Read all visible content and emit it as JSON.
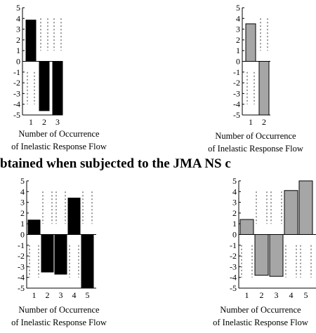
{
  "banner_text": "btained when subjected to the JMA NS c",
  "colors": {
    "dark": "#000000",
    "light": "#a6a6a6",
    "stroke": "#000000"
  },
  "chart_data": [
    {
      "type": "bar",
      "position": "top-left",
      "categories": [
        "1",
        "2",
        "3"
      ],
      "values": [
        3.85,
        -4.6,
        -5
      ],
      "color": "dark",
      "xlabel": [
        "Number of Occurrence",
        "of Inelastic Response Flow"
      ],
      "ylim": [
        -5,
        5
      ],
      "yticks": [
        5,
        4,
        3,
        2,
        1,
        0,
        -1,
        -2,
        -3,
        -4,
        -5
      ]
    },
    {
      "type": "bar",
      "position": "top-right",
      "categories": [
        "1",
        "2"
      ],
      "values": [
        3.5,
        -5
      ],
      "color": "light",
      "xlabel": [
        "Number of Occurrence",
        "of Inelastic Response Flow"
      ],
      "ylim": [
        -5,
        5
      ],
      "yticks": [
        5,
        4,
        3,
        2,
        1,
        0,
        -1,
        -2,
        -3,
        -4,
        -5
      ]
    },
    {
      "type": "bar",
      "position": "bottom-left",
      "categories": [
        "1",
        "2",
        "3",
        "4",
        "5"
      ],
      "values": [
        1.35,
        -3.5,
        -3.7,
        3.4,
        -5
      ],
      "color": "dark",
      "xlabel": [
        "Number of Occurrence",
        "of Inelastic Response Flow"
      ],
      "ylim": [
        -5,
        5
      ],
      "yticks": [
        5,
        4,
        3,
        2,
        1,
        0,
        -1,
        -2,
        -3,
        -4,
        -5
      ]
    },
    {
      "type": "bar",
      "position": "bottom-right",
      "categories": [
        "1",
        "2",
        "3",
        "4",
        "5"
      ],
      "values": [
        1.4,
        -3.8,
        -3.9,
        4.1,
        5
      ],
      "color": "light",
      "xlabel": [
        "Number of Occurrence",
        "of Inelastic Response Flow"
      ],
      "ylim": [
        -5,
        5
      ],
      "yticks": [
        5,
        4,
        3,
        2,
        1,
        0,
        -1,
        -2,
        -3,
        -4,
        -5
      ]
    }
  ]
}
